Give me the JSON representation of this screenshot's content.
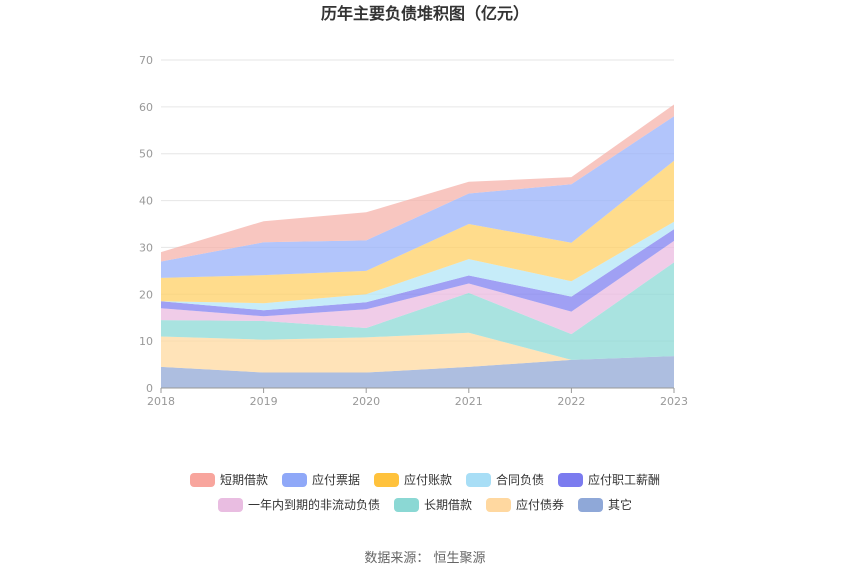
{
  "title": "历年主要负债堆积图（亿元）",
  "source": "数据来源：  恒生聚源",
  "chart_data": {
    "type": "area",
    "stacked": true,
    "title": "历年主要负债堆积图（亿元）",
    "x": [
      "2018",
      "2019",
      "2020",
      "2021",
      "2022",
      "2023"
    ],
    "ylim": [
      0,
      70
    ],
    "yticks": [
      "0",
      "10",
      "20",
      "30",
      "40",
      "50",
      "60",
      "70"
    ],
    "grid": true,
    "legend_position": "bottom",
    "series": [
      {
        "name": "其它",
        "color": "#91a8d6",
        "values": [
          4.5,
          3.3,
          3.3,
          4.5,
          6.0,
          6.8
        ]
      },
      {
        "name": "应付债券",
        "color": "#ffd9a0",
        "values": [
          6.5,
          7.0,
          7.5,
          7.3,
          0.0,
          0.0
        ]
      },
      {
        "name": "长期借款",
        "color": "#8cd9d6",
        "values": [
          3.5,
          4.0,
          2.0,
          8.5,
          5.5,
          20.0
        ]
      },
      {
        "name": "一年内到期的非流动负债",
        "color": "#ebbbe0",
        "values": [
          2.5,
          1.0,
          4.0,
          2.0,
          4.8,
          4.6
        ]
      },
      {
        "name": "应付职工薪酬",
        "color": "#8080f0",
        "values": [
          1.5,
          1.3,
          1.5,
          1.7,
          3.2,
          2.5
        ]
      },
      {
        "name": "合同负债",
        "color": "#b3e5f7",
        "values": [
          0.0,
          1.5,
          1.7,
          3.5,
          3.3,
          1.6
        ]
      },
      {
        "name": "应付账款",
        "color": "#ffd066",
        "values": [
          5.0,
          6.0,
          5.0,
          7.5,
          8.2,
          13.0
        ]
      },
      {
        "name": "应付票据",
        "color": "#98b1fa",
        "values": [
          3.5,
          7.0,
          6.5,
          6.5,
          12.5,
          9.5
        ]
      },
      {
        "name": "短期借款",
        "color": "#f6b3ab",
        "values": [
          2.0,
          4.5,
          6.0,
          2.5,
          1.5,
          2.5
        ]
      }
    ]
  },
  "legend": {
    "row1": [
      "短期借款",
      "应付票据",
      "应付账款",
      "合同负债",
      "应付职工薪酬"
    ],
    "row2": [
      "一年内到期的非流动负债",
      "长期借款",
      "应付债券",
      "其它"
    ],
    "row1_colors": [
      "#f8a59d",
      "#8fa8f8",
      "#ffc23c",
      "#a8def6",
      "#7b7bef"
    ],
    "row2_colors": [
      "#e9bde1",
      "#8bd8d4",
      "#ffd8a0",
      "#8fa8d8"
    ]
  }
}
